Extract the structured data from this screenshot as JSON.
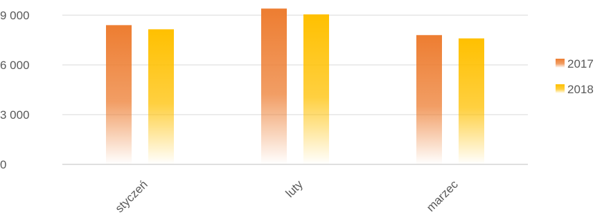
{
  "chart_data": {
    "type": "bar",
    "categories": [
      "styczeń",
      "luty",
      "marzec"
    ],
    "series": [
      {
        "name": "2017",
        "values": [
          8400,
          9400,
          7800
        ],
        "color": "#ED7D31"
      },
      {
        "name": "2018",
        "values": [
          8150,
          9050,
          7600
        ],
        "color": "#FFC000"
      }
    ],
    "ylim": [
      0,
      9000
    ],
    "yticks": [
      0,
      3000,
      6000,
      9000
    ],
    "ytick_labels": [
      "0",
      "3 000",
      "6 000",
      "9 000"
    ],
    "grid": true,
    "legend_position": "right",
    "bar_fill": "vertical gradient fading to white at bottom"
  }
}
